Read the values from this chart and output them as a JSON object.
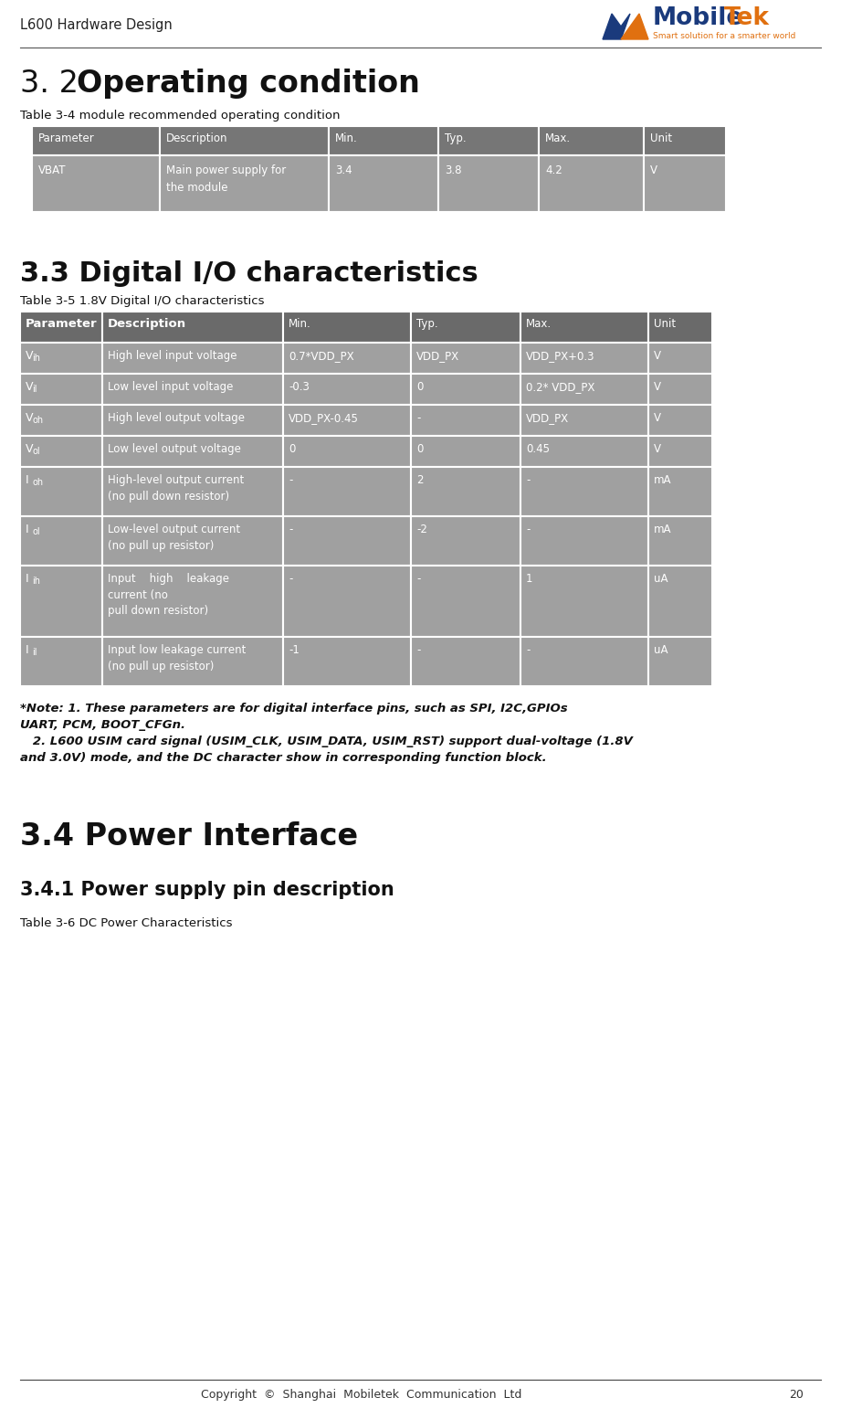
{
  "header_text": "L600 Hardware Design",
  "page_number": "20",
  "table34_caption": "Table 3-4 module recommended operating condition",
  "table34_headers": [
    "Parameter",
    "Description",
    "Min.",
    "Typ.",
    "Max.",
    "Unit"
  ],
  "table34_row": [
    "VBAT",
    "Main power supply for\nthe module",
    "3.4",
    "3.8",
    "4.2",
    "V"
  ],
  "section_33_title": "3.3 Digital I/O characteristics",
  "table35_caption": "Table 3-5 1.8V Digital I/O characteristics",
  "table35_headers_bold": [
    "Parameter",
    "Description"
  ],
  "table35_headers_mono": [
    "Min.",
    "Typ.",
    "Max.",
    "Unit"
  ],
  "table35_params": [
    "VIH",
    "VIL",
    "VOH",
    "VOL",
    "IOH",
    "IOL",
    "IIH",
    "IIL"
  ],
  "table35_descs": [
    "High level input voltage",
    "Low level input voltage",
    "High level output voltage",
    "Low level output voltage",
    "High-level output current\n(no pull down resistor)",
    "Low-level output current\n(no pull up resistor)",
    "Input    high    leakage\ncurrent (no\npull down resistor)",
    "Input low leakage current\n(no pull up resistor)"
  ],
  "table35_min": [
    "0.7*VDD_PX",
    "-0.3",
    "VDD_PX-0.45",
    "0",
    "-",
    "-",
    "-",
    "-1"
  ],
  "table35_typ": [
    "VDD_PX",
    "0",
    "-",
    "0",
    "2",
    "-2",
    "-",
    "-"
  ],
  "table35_max": [
    "VDD_PX+0.3",
    "0.2* VDD_PX",
    "VDD_PX",
    "0.45",
    "-",
    "-",
    "1",
    "-"
  ],
  "table35_unit": [
    "V",
    "V",
    "V",
    "V",
    "mA",
    "mA",
    "uA",
    "uA"
  ],
  "note_line1": "*Note: 1. These parameters are for digital interface pins, such as SPI, I2C,GPIOs",
  "note_line2": "UART, PCM, BOOT_CFGn.",
  "note_line3": "   2. L600 USIM card signal (USIM_CLK, USIM_DATA, USIM_RST) support dual-voltage (1.8V",
  "note_line4": "and 3.0V) mode, and the DC character show in corresponding function block.",
  "section_34_title": "3.4 Power Interface",
  "section_341_title": "3.4.1 Power supply pin description",
  "table36_caption": "Table 3-6 DC Power Characteristics",
  "footer_text": "Copyright  ©  Shanghai  Mobiletek  Communication  Ltd",
  "table_header_bg": "#767676",
  "table_row_bg": "#a0a0a0",
  "table_border": "#ffffff",
  "bg_color": "#ffffff",
  "text_white": "#ffffff",
  "text_black": "#111111",
  "text_dark": "#333333"
}
